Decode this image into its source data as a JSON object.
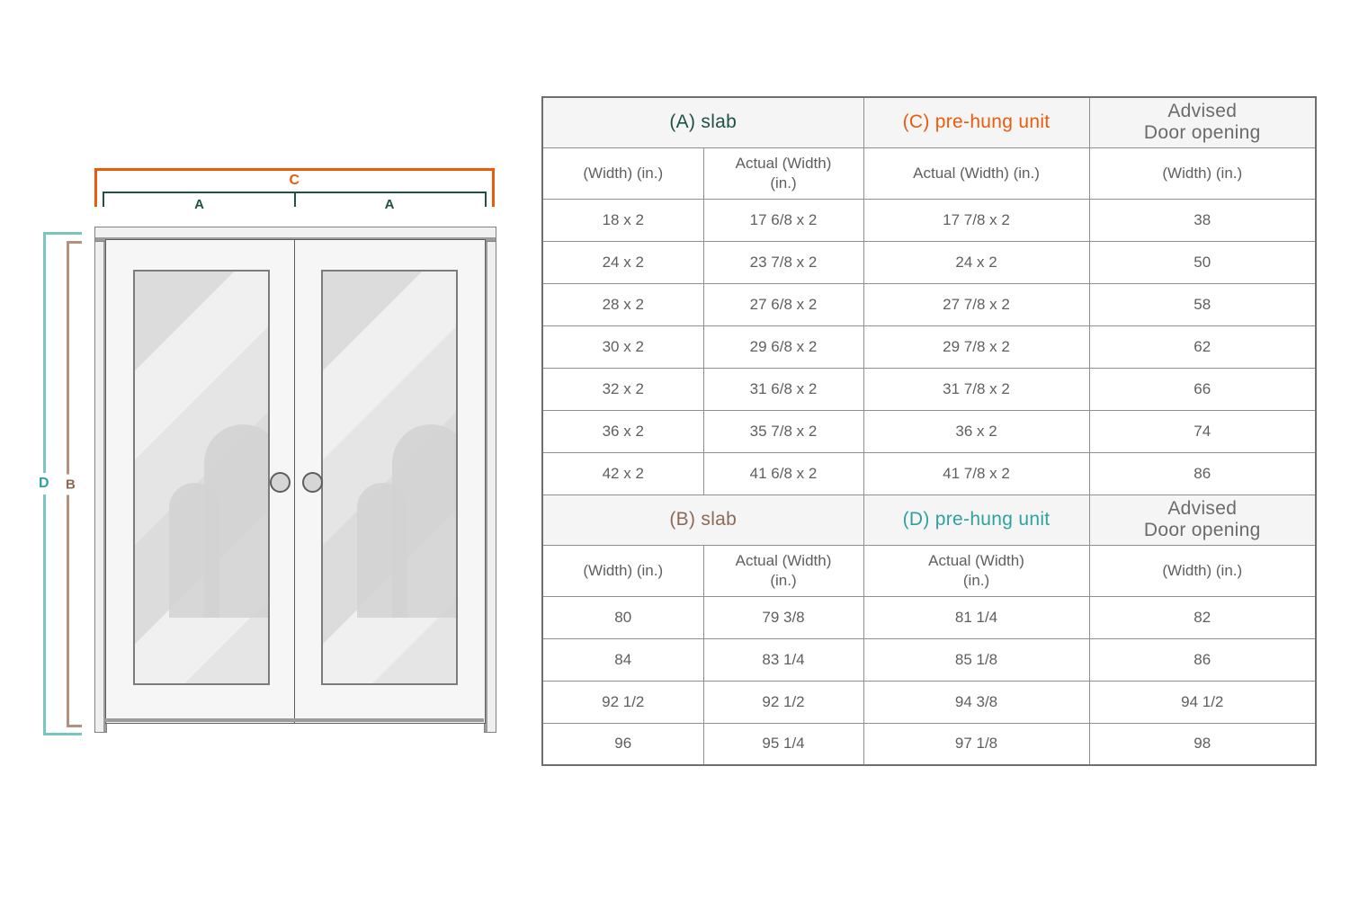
{
  "diagram": {
    "dim_c": "C",
    "dim_a_left": "A",
    "dim_a_right": "A",
    "dim_d": "D",
    "dim_b": "B"
  },
  "colors": {
    "accent_orange": "#EA5B0C",
    "accent_dark_teal": "#1E5147",
    "accent_teal": "#2FA1A1",
    "accent_teal_line": "#79C5C0",
    "accent_brown": "#8C6A55",
    "accent_brown_line": "#B3917E",
    "table_text": "#5F5F5F",
    "header_bg": "#F5F5F5",
    "border_gray": "#8F8F8F"
  },
  "table": {
    "section_a": {
      "slab_header": "(A) slab",
      "prehung_header": "(C) pre-hung unit",
      "advised_line1": "Advised",
      "advised_line2": "Door opening",
      "subheader": {
        "col1": "(Width) (in.)",
        "col2_line1": "Actual (Width)",
        "col2_line2": "(in.)",
        "col3": "Actual (Width) (in.)",
        "col4": "(Width) (in.)"
      },
      "rows": [
        [
          "18 x 2",
          "17 6/8 x 2",
          "17 7/8 x 2",
          "38"
        ],
        [
          "24 x 2",
          "23 7/8 x 2",
          "24 x 2",
          "50"
        ],
        [
          "28 x 2",
          "27 6/8 x 2",
          "27 7/8 x 2",
          "58"
        ],
        [
          "30 x 2",
          "29 6/8 x 2",
          "29 7/8 x 2",
          "62"
        ],
        [
          "32 x 2",
          "31 6/8 x 2",
          "31 7/8 x 2",
          "66"
        ],
        [
          "36 x 2",
          "35 7/8 x 2",
          "36 x 2",
          "74"
        ],
        [
          "42 x 2",
          "41 6/8 x 2",
          "41 7/8 x 2",
          "86"
        ]
      ]
    },
    "section_b": {
      "slab_header": "(B) slab",
      "prehung_header": "(D) pre-hung unit",
      "advised_line1": "Advised",
      "advised_line2": "Door opening",
      "subheader": {
        "col1": "(Width) (in.)",
        "col2_line1": "Actual (Width)",
        "col2_line2": "(in.)",
        "col3_line1": "Actual (Width)",
        "col3_line2": "(in.)",
        "col4": "(Width) (in.)"
      },
      "rows": [
        [
          "80",
          "79 3/8",
          "81 1/4",
          "82"
        ],
        [
          "84",
          "83 1/4",
          "85 1/8",
          "86"
        ],
        [
          "92 1/2",
          "92 1/2",
          "94 3/8",
          "94 1/2"
        ],
        [
          "96",
          "95 1/4",
          "97 1/8",
          "98"
        ]
      ]
    }
  }
}
